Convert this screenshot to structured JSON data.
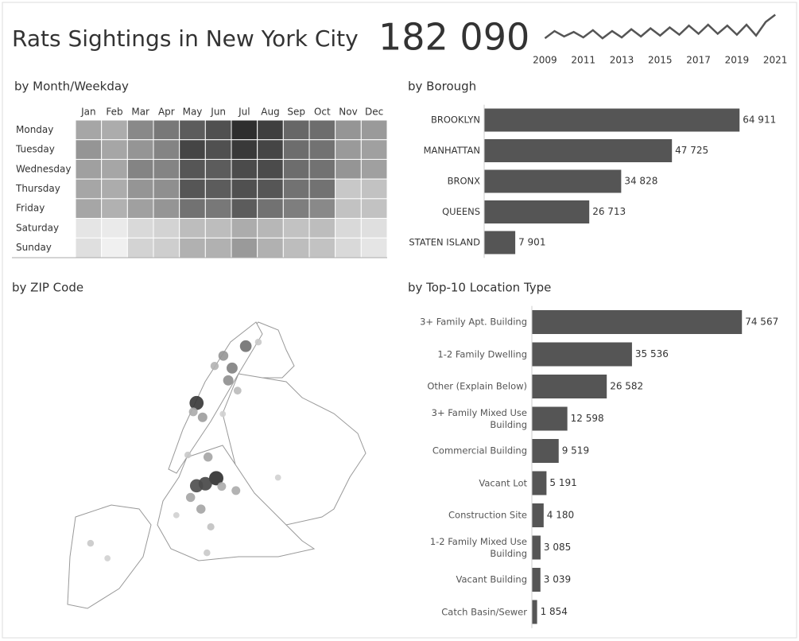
{
  "title": "Rats Sightings in New York City",
  "total": {
    "value": 182090,
    "label": "182 090"
  },
  "chart_data": [
    {
      "type": "line",
      "color": "#555555",
      "x": [
        2009,
        2009.5,
        2010,
        2010.5,
        2011,
        2011.5,
        2012,
        2012.5,
        2013,
        2013.5,
        2014,
        2014.5,
        2015,
        2015.5,
        2016,
        2016.5,
        2017,
        2017.5,
        2018,
        2018.5,
        2019,
        2019.5,
        2020,
        2020.5,
        2021
      ],
      "values": [
        900,
        1300,
        1000,
        1250,
        950,
        1350,
        900,
        1300,
        950,
        1400,
        1000,
        1450,
        1050,
        1500,
        1100,
        1600,
        1150,
        1650,
        1150,
        1600,
        1100,
        1650,
        1050,
        1800,
        2200
      ],
      "xlim": [
        2008.9,
        2021.2
      ],
      "xticks": [
        2009,
        2011,
        2013,
        2015,
        2017,
        2019,
        2021
      ],
      "ylim": [
        600,
        2400
      ]
    },
    {
      "type": "heatmap",
      "title": "by Month/Weekday",
      "categories": [
        "Jan",
        "Feb",
        "Mar",
        "Apr",
        "May",
        "Jun",
        "Jul",
        "Aug",
        "Sep",
        "Oct",
        "Nov",
        "Dec"
      ],
      "rows": [
        "Monday",
        "Tuesday",
        "Wednesday",
        "Thursday",
        "Friday",
        "Saturday",
        "Sunday"
      ],
      "values": [
        [
          2200,
          2100,
          2700,
          3000,
          3500,
          3700,
          4300,
          4000,
          3300,
          3200,
          2500,
          2400
        ],
        [
          2500,
          2200,
          2500,
          2800,
          3900,
          3700,
          4100,
          3900,
          3200,
          3100,
          2400,
          2300
        ],
        [
          2300,
          2200,
          2800,
          2800,
          3600,
          3500,
          3800,
          3800,
          3200,
          3100,
          2500,
          2300
        ],
        [
          2200,
          2100,
          2500,
          2600,
          3600,
          3500,
          3700,
          3600,
          3100,
          3100,
          1600,
          1700
        ],
        [
          2200,
          2000,
          2300,
          2500,
          3100,
          3000,
          3500,
          3100,
          2900,
          2700,
          1700,
          1700
        ],
        [
          1100,
          1000,
          1300,
          1400,
          1800,
          1800,
          2100,
          1900,
          1700,
          1800,
          1300,
          1200
        ],
        [
          1200,
          900,
          1400,
          1500,
          2000,
          2000,
          2400,
          2000,
          1800,
          1700,
          1300,
          1100
        ]
      ],
      "colors": [
        "#f0f0f0",
        "#2e2e2e"
      ]
    },
    {
      "type": "bar",
      "title": "by Borough",
      "orientation": "horizontal",
      "color": "#555555",
      "categories": [
        "BROOKLYN",
        "MANHATTAN",
        "BRONX",
        "QUEENS",
        "STATEN ISLAND"
      ],
      "values": [
        64911,
        47725,
        34828,
        26713,
        7901
      ],
      "value_labels": [
        "64 911",
        "47 725",
        "34 828",
        "26 713",
        "7 901"
      ],
      "xlim": [
        0,
        78000
      ]
    },
    {
      "type": "bubble-map",
      "title": "by ZIP Code",
      "colors": [
        "#d0d0d0",
        "#2e2e2e"
      ],
      "x": [
        -74.024,
        -73.988,
        -74.008,
        -74.024,
        -73.934,
        -73.959,
        -73.975,
        -73.966,
        -74.013,
        -74.03,
        -74.003,
        -74.035,
        -74.016,
        -73.952,
        -73.978,
        -73.998,
        -74.005,
        -74.218,
        -74.187,
        -73.911,
        -73.949,
        -73.991,
        -74.04,
        -74.061,
        -73.875,
        -73.976
      ],
      "y": [
        40.796,
        40.686,
        40.678,
        40.675,
        40.879,
        40.847,
        40.865,
        40.829,
        40.775,
        40.783,
        40.717,
        40.658,
        40.641,
        40.668,
        40.674,
        40.615,
        40.577,
        40.591,
        40.569,
        40.885,
        40.814,
        40.85,
        40.72,
        40.632,
        40.687,
        40.78
      ],
      "sizes": [
        2600,
        2700,
        2400,
        2300,
        1800,
        1600,
        1300,
        1400,
        1200,
        1000,
        1100,
        1100,
        1100,
        1000,
        1000,
        700,
        600,
        600,
        500,
        600,
        800,
        900,
        600,
        500,
        500,
        500
      ],
      "xlim": [
        -74.26,
        -73.7
      ],
      "ylim": [
        40.49,
        40.92
      ]
    },
    {
      "type": "bar",
      "title": "by Top-10 Location Type",
      "orientation": "horizontal",
      "color": "#555555",
      "categories": [
        "3+ Family Apt. Building",
        "1-2 Family Dwelling",
        "Other (Explain Below)",
        "3+ Family Mixed Use Building",
        "Commercial Building",
        "Vacant Lot",
        "Construction Site",
        "1-2 Family Mixed Use Building",
        "Vacant Building",
        "Catch Basin/Sewer"
      ],
      "values": [
        74567,
        35536,
        26582,
        12598,
        9519,
        5191,
        4180,
        3085,
        3039,
        1854
      ],
      "value_labels": [
        "74 567",
        "35 536",
        "26 582",
        "12 598",
        "9 519",
        "5 191",
        "4 180",
        "3 085",
        "3 039",
        "1 854"
      ],
      "xlim": [
        0,
        92000
      ]
    }
  ]
}
